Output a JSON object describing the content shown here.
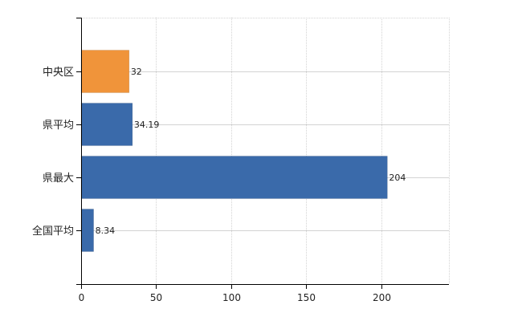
{
  "chart_data": {
    "type": "bar",
    "orientation": "horizontal",
    "categories": [
      "中央区",
      "県平均",
      "県最大",
      "全国平均"
    ],
    "values": [
      32,
      34.19,
      204,
      8.34
    ],
    "value_labels": [
      "32",
      "34.19",
      "204",
      "8.34"
    ],
    "bar_colors": [
      "#f0943a",
      "#3a6aaa",
      "#3a6aaa",
      "#3a6aaa"
    ],
    "title": "",
    "xlabel": "",
    "ylabel": "",
    "xlim": [
      0,
      245
    ],
    "xticks": [
      0,
      50,
      100,
      150,
      200
    ],
    "xtick_labels": [
      "0",
      "50",
      "100",
      "150",
      "200"
    ],
    "grid": true,
    "legend": "none"
  },
  "colors": {
    "highlight": "#f0943a",
    "default_bar": "#3a6aaa",
    "grid": "#d3d3d3",
    "axis": "#000000"
  }
}
